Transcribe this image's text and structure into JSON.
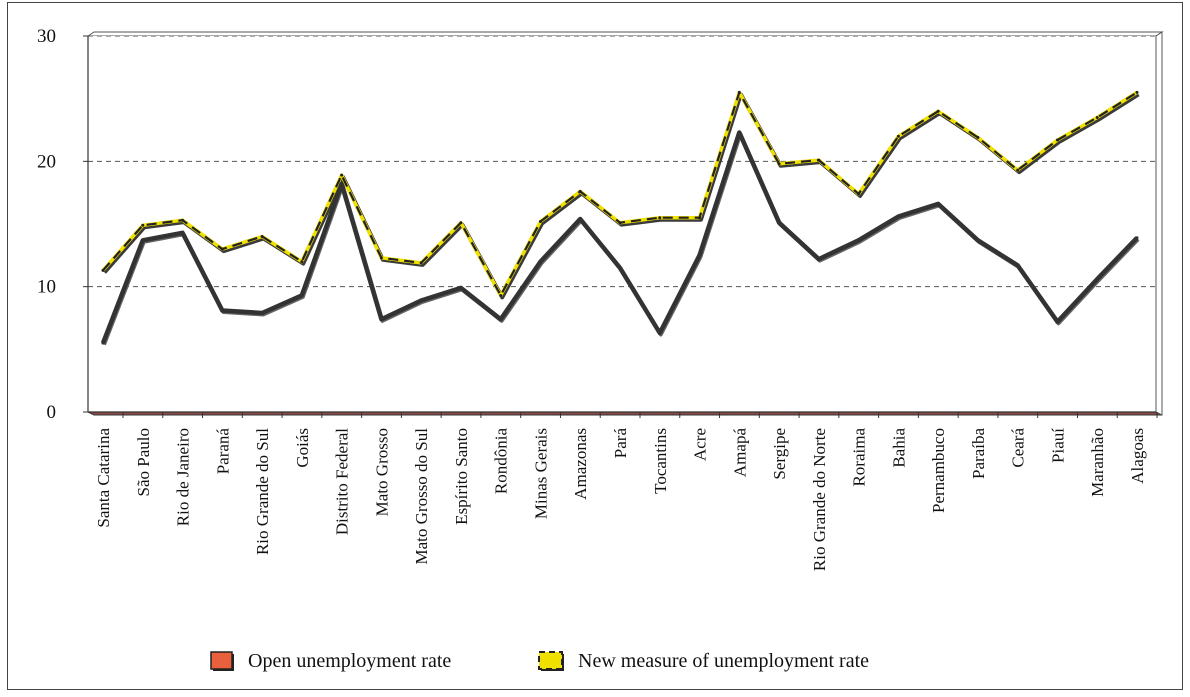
{
  "chart_data": {
    "type": "line",
    "categories": [
      "Santa Catarina",
      "São Paulo",
      "Rio de Janeiro",
      "Paraná",
      "Rio Grande do Sul",
      "Goiás",
      "Distrito Federal",
      "Mato Grosso",
      "Mato Grosso do Sul",
      "Espírito Santo",
      "Rondônia",
      "Minas Gerais",
      "Amazonas",
      "Pará",
      "Tocantins",
      "Acre",
      "Amapá",
      "Sergipe",
      "Rio Grande do Norte",
      "Roraima",
      "Bahia",
      "Pernambuco",
      "Paraíba",
      "Ceará",
      "Piauí",
      "Maranhão",
      "Alagoas"
    ],
    "series": [
      {
        "name": "Open unemployment rate",
        "color": "#333333",
        "legend_swatch_color": "#e8603c",
        "values": [
          5.5,
          13.7,
          14.3,
          8.1,
          7.9,
          9.3,
          18.2,
          7.4,
          8.9,
          9.9,
          7.4,
          12.0,
          15.4,
          11.5,
          6.3,
          12.5,
          22.3,
          15.1,
          12.2,
          13.7,
          15.6,
          16.6,
          13.7,
          11.7,
          7.2,
          10.6,
          13.9
        ]
      },
      {
        "name": "New measure of unemployment rate",
        "color": "#222222",
        "accent_color": "#f0e000",
        "values": [
          11.3,
          14.9,
          15.3,
          13.0,
          14.0,
          12.0,
          18.9,
          12.3,
          11.9,
          15.1,
          9.3,
          15.2,
          17.6,
          15.1,
          15.5,
          15.5,
          25.5,
          19.8,
          20.1,
          17.4,
          22.0,
          24.0,
          21.9,
          19.3,
          21.7,
          23.5,
          25.5
        ]
      }
    ],
    "ylim": [
      0,
      30
    ],
    "yticks": [
      "0",
      "10",
      "20",
      "30"
    ],
    "grid": "horizontal dashed",
    "legend_position": "bottom"
  }
}
